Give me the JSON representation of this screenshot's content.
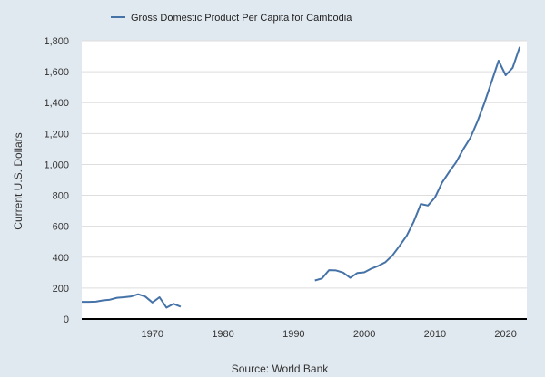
{
  "chart_data": {
    "type": "line",
    "title": "",
    "xlabel": "",
    "ylabel": "Current U.S. Dollars",
    "source": "Source: World Bank",
    "xlim": [
      1960,
      2023
    ],
    "ylim": [
      0,
      1800
    ],
    "x_ticks": [
      1970,
      1980,
      1990,
      2000,
      2010,
      2020
    ],
    "y_ticks": [
      0,
      200,
      400,
      600,
      800,
      1000,
      1200,
      1400,
      1600,
      1800
    ],
    "y_tick_labels": [
      "0",
      "200",
      "400",
      "600",
      "800",
      "1,000",
      "1,200",
      "1,400",
      "1,600",
      "1,800"
    ],
    "grid": "horizontal",
    "legend_position": "top-left",
    "colors": {
      "plot_bg": "#ffffff",
      "page_bg": "#e1e9f0",
      "line": "#4572a7",
      "grid": "#dddddd",
      "baseline": "#000000"
    },
    "series": [
      {
        "name": "Gross Domestic Product Per Capita for Cambodia",
        "segments": [
          {
            "x": [
              1960,
              1961,
              1962,
              1963,
              1964,
              1965,
              1966,
              1967,
              1968,
              1969,
              1970,
              1971,
              1972,
              1973,
              1974
            ],
            "y": [
              111,
              111,
              112,
              120,
              125,
              137,
              141,
              146,
              160,
              145,
              107,
              141,
              73,
              98,
              80
            ]
          },
          {
            "x": [
              1993,
              1994,
              1995,
              1996,
              1997,
              1998,
              1999,
              2000,
              2001,
              2002,
              2003,
              2004,
              2005,
              2006,
              2007,
              2008,
              2009,
              2010,
              2011,
              2012,
              2013,
              2014,
              2015,
              2016,
              2017,
              2018,
              2019,
              2020,
              2021,
              2022
            ],
            "y": [
              249,
              262,
              316,
              314,
              300,
              266,
              297,
              302,
              326,
              344,
              368,
              412,
              474,
              539,
              631,
              744,
              734,
              786,
              883,
              951,
              1015,
              1098,
              1172,
              1278,
              1398,
              1533,
              1671,
              1577,
              1625,
              1760
            ]
          }
        ]
      }
    ]
  }
}
